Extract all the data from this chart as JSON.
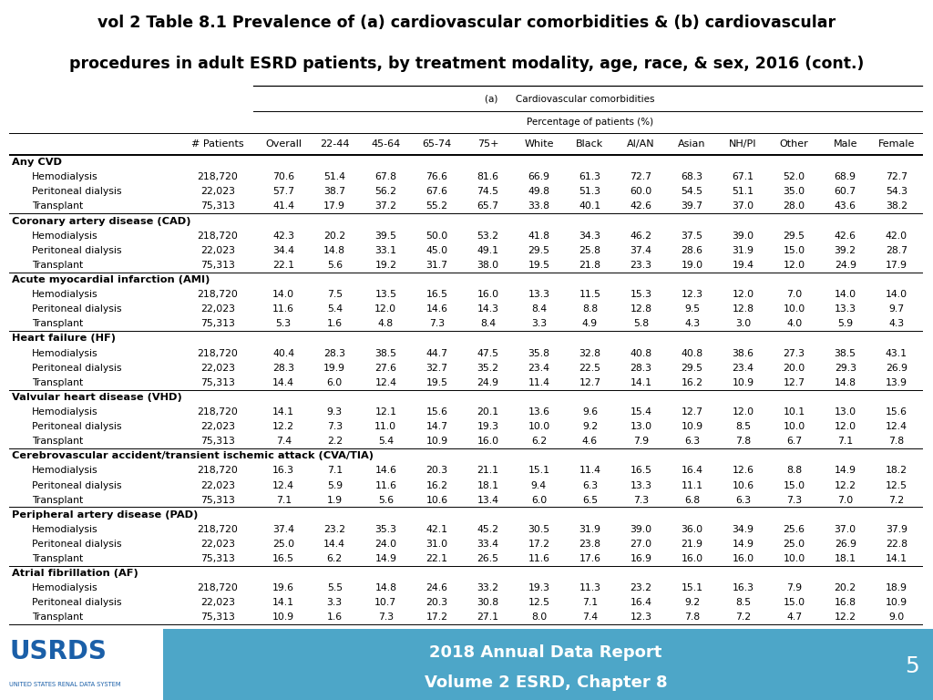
{
  "title_line1": "vol 2 Table 8.1 Prevalence of (a) cardiovascular comorbidities & (b) cardiovascular",
  "title_line2": "procedures in adult ESRD patients, by treatment modality, age, race, & sex, 2016 (cont.)",
  "subtitle_a": "(a)      Cardiovascular comorbidities",
  "subtitle_pct": "Percentage of patients (%)",
  "col_headers": [
    "# Patients",
    "Overall",
    "22-44",
    "45-64",
    "65-74",
    "75+",
    "White",
    "Black",
    "AI/AN",
    "Asian",
    "NH/PI",
    "Other",
    "Male",
    "Female"
  ],
  "sections": [
    {
      "name": "Any CVD",
      "rows": [
        {
          "label": "Hemodialysis",
          "values": [
            "218,720",
            "70.6",
            "51.4",
            "67.8",
            "76.6",
            "81.6",
            "66.9",
            "61.3",
            "72.7",
            "68.3",
            "67.1",
            "52.0",
            "68.9",
            "72.7"
          ]
        },
        {
          "label": "Peritoneal dialysis",
          "values": [
            "22,023",
            "57.7",
            "38.7",
            "56.2",
            "67.6",
            "74.5",
            "49.8",
            "51.3",
            "60.0",
            "54.5",
            "51.1",
            "35.0",
            "60.7",
            "54.3"
          ]
        },
        {
          "label": "Transplant",
          "values": [
            "75,313",
            "41.4",
            "17.9",
            "37.2",
            "55.2",
            "65.7",
            "33.8",
            "40.1",
            "42.6",
            "39.7",
            "37.0",
            "28.0",
            "43.6",
            "38.2"
          ]
        }
      ]
    },
    {
      "name": "Coronary artery disease (CAD)",
      "rows": [
        {
          "label": "Hemodialysis",
          "values": [
            "218,720",
            "42.3",
            "20.2",
            "39.5",
            "50.0",
            "53.2",
            "41.8",
            "34.3",
            "46.2",
            "37.5",
            "39.0",
            "29.5",
            "42.6",
            "42.0"
          ]
        },
        {
          "label": "Peritoneal dialysis",
          "values": [
            "22,023",
            "34.4",
            "14.8",
            "33.1",
            "45.0",
            "49.1",
            "29.5",
            "25.8",
            "37.4",
            "28.6",
            "31.9",
            "15.0",
            "39.2",
            "28.7"
          ]
        },
        {
          "label": "Transplant",
          "values": [
            "75,313",
            "22.1",
            "5.6",
            "19.2",
            "31.7",
            "38.0",
            "19.5",
            "21.8",
            "23.3",
            "19.0",
            "19.4",
            "12.0",
            "24.9",
            "17.9"
          ]
        }
      ]
    },
    {
      "name": "Acute myocardial infarction (AMI)",
      "rows": [
        {
          "label": "Hemodialysis",
          "values": [
            "218,720",
            "14.0",
            "7.5",
            "13.5",
            "16.5",
            "16.0",
            "13.3",
            "11.5",
            "15.3",
            "12.3",
            "12.0",
            "7.0",
            "14.0",
            "14.0"
          ]
        },
        {
          "label": "Peritoneal dialysis",
          "values": [
            "22,023",
            "11.6",
            "5.4",
            "12.0",
            "14.6",
            "14.3",
            "8.4",
            "8.8",
            "12.8",
            "9.5",
            "12.8",
            "10.0",
            "13.3",
            "9.7"
          ]
        },
        {
          "label": "Transplant",
          "values": [
            "75,313",
            "5.3",
            "1.6",
            "4.8",
            "7.3",
            "8.4",
            "3.3",
            "4.9",
            "5.8",
            "4.3",
            "3.0",
            "4.0",
            "5.9",
            "4.3"
          ]
        }
      ]
    },
    {
      "name": "Heart failure (HF)",
      "rows": [
        {
          "label": "Hemodialysis",
          "values": [
            "218,720",
            "40.4",
            "28.3",
            "38.5",
            "44.7",
            "47.5",
            "35.8",
            "32.8",
            "40.8",
            "40.8",
            "38.6",
            "27.3",
            "38.5",
            "43.1"
          ]
        },
        {
          "label": "Peritoneal dialysis",
          "values": [
            "22,023",
            "28.3",
            "19.9",
            "27.6",
            "32.7",
            "35.2",
            "23.4",
            "22.5",
            "28.3",
            "29.5",
            "23.4",
            "20.0",
            "29.3",
            "26.9"
          ]
        },
        {
          "label": "Transplant",
          "values": [
            "75,313",
            "14.4",
            "6.0",
            "12.4",
            "19.5",
            "24.9",
            "11.4",
            "12.7",
            "14.1",
            "16.2",
            "10.9",
            "12.7",
            "14.8",
            "13.9"
          ]
        }
      ]
    },
    {
      "name": "Valvular heart disease (VHD)",
      "rows": [
        {
          "label": "Hemodialysis",
          "values": [
            "218,720",
            "14.1",
            "9.3",
            "12.1",
            "15.6",
            "20.1",
            "13.6",
            "9.6",
            "15.4",
            "12.7",
            "12.0",
            "10.1",
            "13.0",
            "15.6"
          ]
        },
        {
          "label": "Peritoneal dialysis",
          "values": [
            "22,023",
            "12.2",
            "7.3",
            "11.0",
            "14.7",
            "19.3",
            "10.0",
            "9.2",
            "13.0",
            "10.9",
            "8.5",
            "10.0",
            "12.0",
            "12.4"
          ]
        },
        {
          "label": "Transplant",
          "values": [
            "75,313",
            "7.4",
            "2.2",
            "5.4",
            "10.9",
            "16.0",
            "6.2",
            "4.6",
            "7.9",
            "6.3",
            "7.8",
            "6.7",
            "7.1",
            "7.8"
          ]
        }
      ]
    },
    {
      "name": "Cerebrovascular accident/transient ischemic attack (CVA/TIA)",
      "rows": [
        {
          "label": "Hemodialysis",
          "values": [
            "218,720",
            "16.3",
            "7.1",
            "14.6",
            "20.3",
            "21.1",
            "15.1",
            "11.4",
            "16.5",
            "16.4",
            "12.6",
            "8.8",
            "14.9",
            "18.2"
          ]
        },
        {
          "label": "Peritoneal dialysis",
          "values": [
            "22,023",
            "12.4",
            "5.9",
            "11.6",
            "16.2",
            "18.1",
            "9.4",
            "6.3",
            "13.3",
            "11.1",
            "10.6",
            "15.0",
            "12.2",
            "12.5"
          ]
        },
        {
          "label": "Transplant",
          "values": [
            "75,313",
            "7.1",
            "1.9",
            "5.6",
            "10.6",
            "13.4",
            "6.0",
            "6.5",
            "7.3",
            "6.8",
            "6.3",
            "7.3",
            "7.0",
            "7.2"
          ]
        }
      ]
    },
    {
      "name": "Peripheral artery disease (PAD)",
      "rows": [
        {
          "label": "Hemodialysis",
          "values": [
            "218,720",
            "37.4",
            "23.2",
            "35.3",
            "42.1",
            "45.2",
            "30.5",
            "31.9",
            "39.0",
            "36.0",
            "34.9",
            "25.6",
            "37.0",
            "37.9"
          ]
        },
        {
          "label": "Peritoneal dialysis",
          "values": [
            "22,023",
            "25.0",
            "14.4",
            "24.0",
            "31.0",
            "33.4",
            "17.2",
            "23.8",
            "27.0",
            "21.9",
            "14.9",
            "25.0",
            "26.9",
            "22.8"
          ]
        },
        {
          "label": "Transplant",
          "values": [
            "75,313",
            "16.5",
            "6.2",
            "14.9",
            "22.1",
            "26.5",
            "11.6",
            "17.6",
            "16.9",
            "16.0",
            "16.0",
            "10.0",
            "18.1",
            "14.1"
          ]
        }
      ]
    },
    {
      "name": "Atrial fibrillation (AF)",
      "rows": [
        {
          "label": "Hemodialysis",
          "values": [
            "218,720",
            "19.6",
            "5.5",
            "14.8",
            "24.6",
            "33.2",
            "19.3",
            "11.3",
            "23.2",
            "15.1",
            "16.3",
            "7.9",
            "20.2",
            "18.9"
          ]
        },
        {
          "label": "Peritoneal dialysis",
          "values": [
            "22,023",
            "14.1",
            "3.3",
            "10.7",
            "20.3",
            "30.8",
            "12.5",
            "7.1",
            "16.4",
            "9.2",
            "8.5",
            "15.0",
            "16.8",
            "10.9"
          ]
        },
        {
          "label": "Transplant",
          "values": [
            "75,313",
            "10.9",
            "1.6",
            "7.3",
            "17.2",
            "27.1",
            "8.0",
            "7.4",
            "12.3",
            "7.8",
            "7.2",
            "4.7",
            "12.2",
            "9.0"
          ]
        }
      ]
    }
  ],
  "footer_text1": "2018 Annual Data Report",
  "footer_text2": "Volume 2 ESRD, Chapter 8",
  "footer_page": "5",
  "footer_bg": "#4da6c8",
  "usrds_blue": "#1a5fa8",
  "title_fontsize": 12.5,
  "header_fontsize": 8.0,
  "data_fontsize": 7.8,
  "section_fontsize": 8.2
}
